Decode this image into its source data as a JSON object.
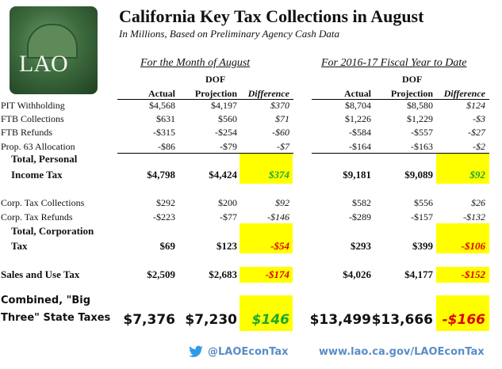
{
  "header": {
    "title": "California Key Tax Collections in August",
    "subtitle": "In Millions, Based on Preliminary Agency Cash Data",
    "logo_text": "LAO"
  },
  "sections": {
    "month": "For the Month of August",
    "ytd": "For 2016-17 Fiscal Year to Date"
  },
  "columns": {
    "dof": "DOF",
    "actual": "Actual",
    "projection": "Projection",
    "difference": "Difference"
  },
  "rows": [
    {
      "label": "PIT Withholding",
      "m": [
        "$4,568",
        "$4,197",
        "$370"
      ],
      "y": [
        "$8,704",
        "$8,580",
        "$124"
      ]
    },
    {
      "label": "FTB Collections",
      "m": [
        "$631",
        "$560",
        "$71"
      ],
      "y": [
        "$1,226",
        "$1,229",
        "-$3"
      ]
    },
    {
      "label": "FTB Refunds",
      "m": [
        "-$315",
        "-$254",
        "-$60"
      ],
      "y": [
        "-$584",
        "-$557",
        "-$27"
      ]
    },
    {
      "label": "Prop. 63 Allocation",
      "m": [
        "-$86",
        "-$79",
        "-$7"
      ],
      "y": [
        "-$164",
        "-$163",
        "-$2"
      ]
    },
    {
      "label1": "Total, Personal",
      "label2": "Income Tax",
      "m": [
        "$4,798",
        "$4,424",
        "$374"
      ],
      "y": [
        "$9,181",
        "$9,089",
        "$92"
      ]
    },
    {
      "label": "Corp. Tax Collections",
      "m": [
        "$292",
        "$200",
        "$92"
      ],
      "y": [
        "$582",
        "$556",
        "$26"
      ]
    },
    {
      "label": "Corp. Tax Refunds",
      "m": [
        "-$223",
        "-$77",
        "-$146"
      ],
      "y": [
        "-$289",
        "-$157",
        "-$132"
      ]
    },
    {
      "label1": "Total, Corporation",
      "label2": "Tax",
      "m": [
        "$69",
        "$123",
        "-$54"
      ],
      "y": [
        "$293",
        "$399",
        "-$106"
      ]
    },
    {
      "label": "Sales and Use Tax",
      "m": [
        "$2,509",
        "$2,683",
        "-$174"
      ],
      "y": [
        "$4,026",
        "$4,177",
        "-$152"
      ]
    },
    {
      "label1": "Combined, \"Big",
      "label2": "Three\" State Taxes",
      "m": [
        "$7,376",
        "$7,230",
        "$146"
      ],
      "y": [
        "$13,499",
        "$13,666",
        "-$166"
      ]
    }
  ],
  "footer": {
    "twitter": "@LAOEconTax",
    "url": "www.lao.ca.gov/LAOEconTax",
    "icon": "twitter-bird-icon"
  },
  "colors": {
    "highlight": "#ffff00",
    "positive": "#19a833",
    "negative": "#e00000",
    "footer": "#5b8cc7"
  }
}
